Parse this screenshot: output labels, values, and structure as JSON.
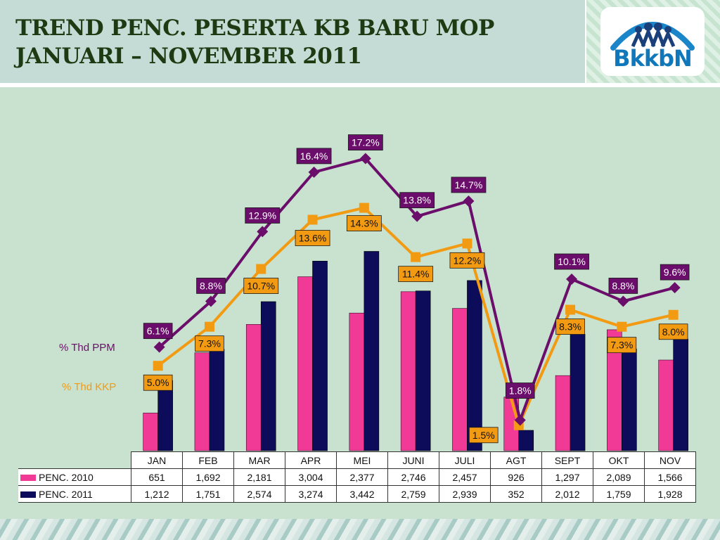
{
  "header": {
    "title_line1": "TREND PENC. PESERTA KB BARU MOP",
    "title_line2": "JANUARI – NOVEMBER 2011",
    "logo_text": "BkkbN"
  },
  "colors": {
    "penc2010": "#f03a96",
    "penc2011": "#0c0c5a",
    "ppm": "#6b0d6b",
    "kkp": "#f29a12"
  },
  "chart_data": {
    "type": "bar",
    "categories": [
      "JAN",
      "FEB",
      "MAR",
      "APR",
      "MEI",
      "JUNI",
      "JULI",
      "AGT",
      "SEPT",
      "OKT",
      "NOV"
    ],
    "series": [
      {
        "name": "PENC. 2010",
        "type": "bar",
        "values": [
          651,
          1692,
          2181,
          3004,
          2377,
          2746,
          2457,
          926,
          1297,
          2089,
          1566
        ],
        "labels": [
          "651",
          "1,692",
          "2,181",
          "3,004",
          "2,377",
          "2,746",
          "2,457",
          "926",
          "1,297",
          "2,089",
          "1,566"
        ]
      },
      {
        "name": "PENC. 2011",
        "type": "bar",
        "values": [
          1212,
          1751,
          2574,
          3274,
          3442,
          2759,
          2939,
          352,
          2012,
          1759,
          1928
        ],
        "labels": [
          "1,212",
          "1,751",
          "2,574",
          "3,274",
          "3,442",
          "2,759",
          "2,939",
          "352",
          "2,012",
          "1,759",
          "1,928"
        ]
      },
      {
        "name": "% Thd PPM",
        "type": "line",
        "values": [
          6.1,
          8.8,
          12.9,
          16.4,
          17.2,
          13.8,
          14.7,
          1.8,
          10.1,
          8.8,
          9.6
        ],
        "labels": [
          "6.1%",
          "8.8%",
          "12.9%",
          "16.4%",
          "17.2%",
          "13.8%",
          "14.7%",
          "1.8%",
          "10.1%",
          "8.8%",
          "9.6%"
        ]
      },
      {
        "name": "% Thd KKP",
        "type": "line",
        "values": [
          5.0,
          7.3,
          10.7,
          13.6,
          14.3,
          11.4,
          12.2,
          1.5,
          8.3,
          7.3,
          8.0
        ],
        "labels": [
          "5.0%",
          "7.3%",
          "10.7%",
          "13.6%",
          "14.3%",
          "11.4%",
          "12.2%",
          "1.5%",
          "8.3%",
          "7.3%",
          "8.0%"
        ]
      }
    ],
    "ylim_bars": [
      0,
      3800
    ],
    "ylim_percent": [
      0,
      19.5
    ],
    "legend_position": "left"
  }
}
